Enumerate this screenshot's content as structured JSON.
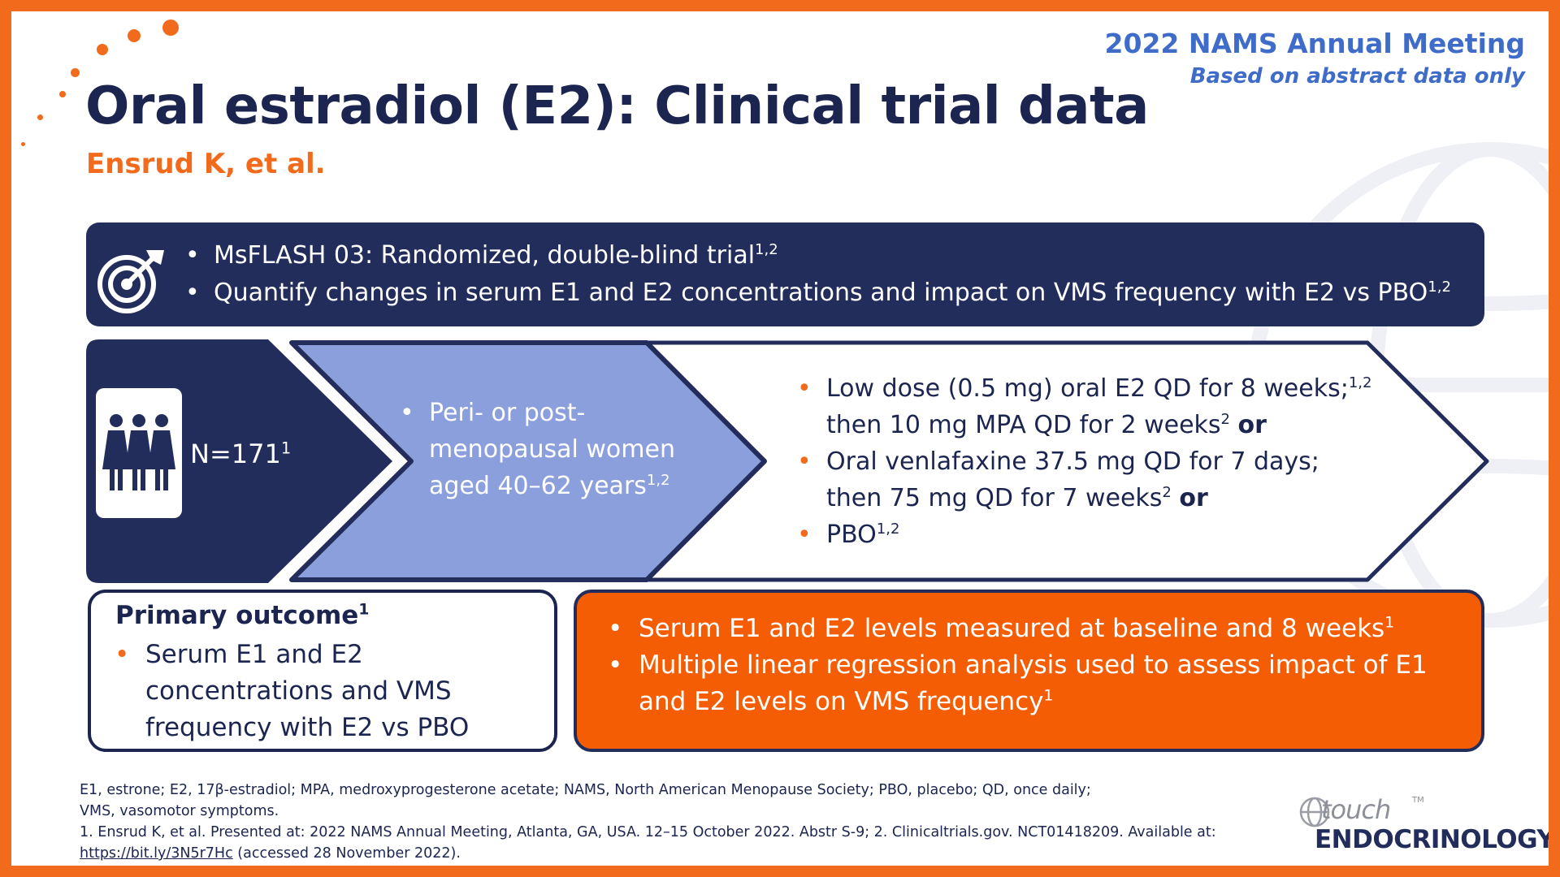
{
  "header": {
    "meeting": "2022 NAMS Annual Meeting",
    "note": "Based on abstract data only",
    "title": "Oral estradiol (E2): Clinical trial data",
    "authors": "Ensrud K, et al."
  },
  "objective": {
    "items": [
      {
        "text": "MsFLASH 03: Randomized, double-blind trial",
        "sup": "1,2"
      },
      {
        "text": "Quantify changes in serum E1 and E2 concentrations and impact on VMS frequency with E2 vs PBO",
        "sup": "1,2"
      }
    ]
  },
  "design": {
    "n_label": "N=171",
    "n_sup": "1",
    "population": {
      "line1": "Peri- or post-",
      "line2": "menopausal women",
      "line3": "aged 40–62 years",
      "sup": "1,2"
    },
    "arms": [
      {
        "line1": "Low dose (0.5 mg) oral E2 QD for 8 weeks;",
        "line1_sup": "1,2",
        "line2": "then 10 mg MPA QD for 2 weeks",
        "line2_sup": "2",
        "connector": "or"
      },
      {
        "line1": "Oral venlafaxine 37.5 mg QD for 7 days;",
        "line1_sup": "",
        "line2": "then 75 mg QD for 7 weeks",
        "line2_sup": "2",
        "connector": "or"
      },
      {
        "line1": "PBO",
        "line1_sup": "1,2"
      }
    ]
  },
  "primary_outcome": {
    "title": "Primary outcome",
    "title_sup": "1",
    "item": "Serum E1 and E2 concentrations and VMS frequency with E2 vs PBO"
  },
  "methods": {
    "items": [
      {
        "text": "Serum E1 and E2 levels measured at baseline and 8 weeks",
        "sup": "1"
      },
      {
        "text": "Multiple linear regression analysis used to assess impact of E1 and E2 levels on VMS frequency",
        "sup": "1"
      }
    ]
  },
  "footer": {
    "abbreviations": "E1, estrone; E2, 17β-estradiol; MPA, medroxyprogesterone acetate; NAMS, North American Menopause Society; PBO, placebo; QD, once daily; VMS, vasomotor symptoms.",
    "references": "1. Ensrud K, et al. Presented at: 2022 NAMS Annual Meeting, Atlanta, GA, USA. 12–15 October 2022. Abstr S-9; 2. Clinicaltrials.gov. NCT01418209. Available at:",
    "link": "https://bit.ly/3N5r7Hc",
    "accessed": "(accessed 28 November 2022)."
  },
  "logo": {
    "touch": "touch",
    "tm": "TM",
    "brand": "ENDOCRINOLOGY"
  },
  "colors": {
    "accent": "#f26a1b",
    "navy": "#222d5b",
    "periwinkle": "#8b9fdc",
    "blue": "#3f6cc9",
    "orange_box": "#f55d05"
  }
}
